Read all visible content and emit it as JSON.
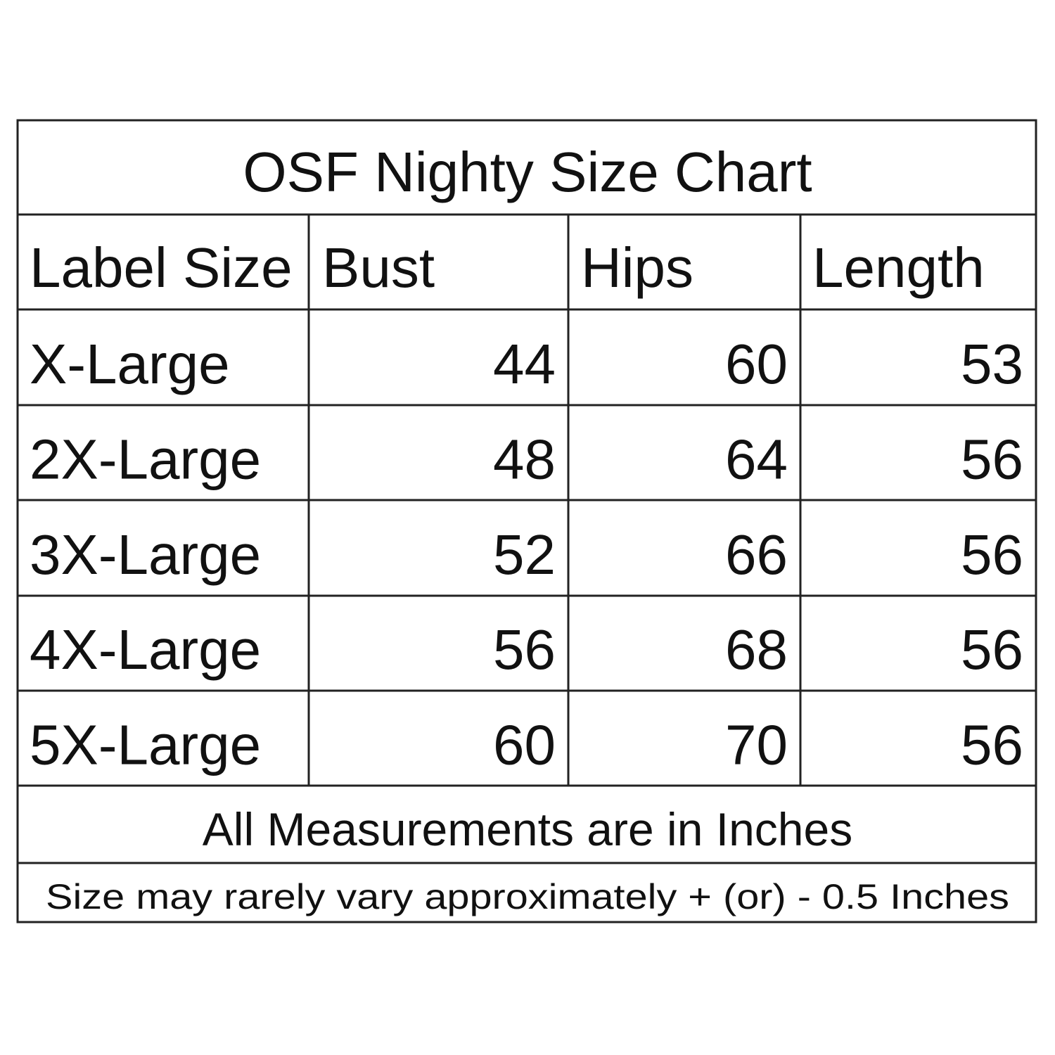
{
  "table": {
    "title": "OSF Nighty Size Chart",
    "headers": [
      "Label Size",
      "Bust",
      "Hips",
      "Length"
    ],
    "rows": [
      [
        "X-Large",
        44,
        60,
        53
      ],
      [
        "2X-Large",
        48,
        64,
        56
      ],
      [
        "3X-Large",
        52,
        66,
        56
      ],
      [
        "4X-Large",
        56,
        68,
        56
      ],
      [
        "5X-Large",
        60,
        70,
        56
      ]
    ],
    "notes": [
      "All Measurements are in Inches",
      "Size may rarely vary approximately + (or) - 0.5 Inches"
    ]
  }
}
